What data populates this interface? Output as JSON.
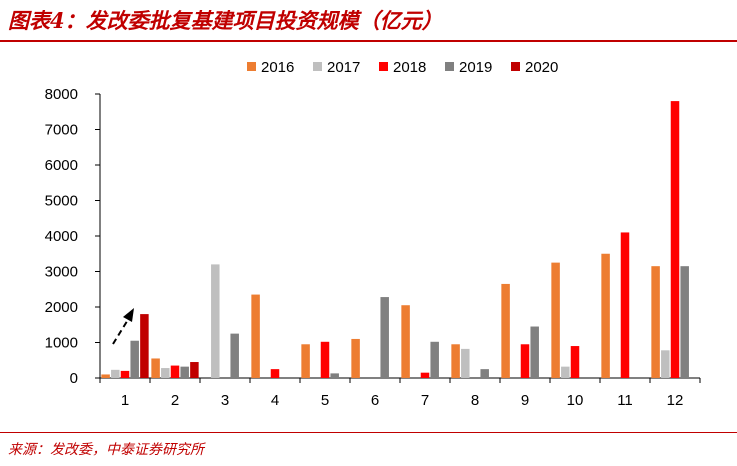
{
  "header": {
    "title": "图表4：发改委批复基建项目投资规模（亿元）"
  },
  "footer": {
    "source": "来源：发改委，中泰证券研究所"
  },
  "chart_data": {
    "type": "bar",
    "title": "图表4：发改委批复基建项目投资规模（亿元）",
    "xlabel": "",
    "ylabel": "",
    "categories": [
      "1",
      "2",
      "3",
      "4",
      "5",
      "6",
      "7",
      "8",
      "9",
      "10",
      "11",
      "12"
    ],
    "ylim": [
      0,
      8000
    ],
    "yticks": [
      "0",
      "1000",
      "2000",
      "3000",
      "4000",
      "5000",
      "6000",
      "7000",
      "8000"
    ],
    "grid": false,
    "legend_position": "top-center",
    "series": [
      {
        "name": "2016",
        "color": "#ED7D31",
        "values": [
          100,
          550,
          null,
          2350,
          950,
          1100,
          2050,
          950,
          2650,
          3250,
          3500,
          3150
        ]
      },
      {
        "name": "2017",
        "color": "#BFBFBF",
        "values": [
          230,
          280,
          3200,
          null,
          null,
          null,
          null,
          820,
          null,
          320,
          null,
          780
        ]
      },
      {
        "name": "2018",
        "color": "#FF0000",
        "values": [
          200,
          350,
          null,
          250,
          1020,
          null,
          150,
          null,
          950,
          900,
          4100,
          7800
        ]
      },
      {
        "name": "2019",
        "color": "#808080",
        "values": [
          1050,
          320,
          1250,
          null,
          130,
          2280,
          1020,
          250,
          1450,
          null,
          null,
          3150
        ]
      },
      {
        "name": "2020",
        "color": "#C00000",
        "values": [
          1800,
          450,
          null,
          null,
          null,
          null,
          null,
          null,
          null,
          null,
          null,
          null
        ]
      }
    ]
  }
}
